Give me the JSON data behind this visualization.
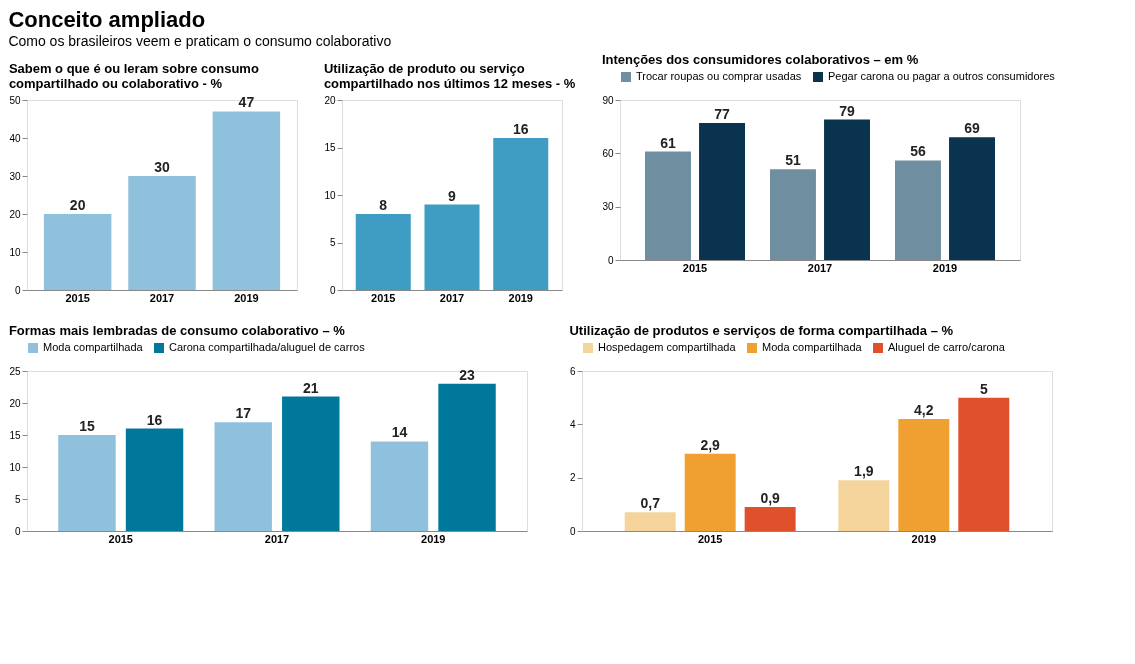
{
  "chart_data": [
    {
      "type": "bar",
      "title": "Sabem o que é ou leram sobre consumo compartilhado ou colaborativo - %",
      "annotations": [
        "Conceito ampliado",
        "Como os brasileiros veem e praticam o consumo colaborativo"
      ],
      "categories": [
        "2015",
        "2017",
        "2019"
      ],
      "values": [
        20,
        30,
        47
      ],
      "color": "#8fc1dc",
      "ylim": [
        0,
        50
      ],
      "yticks": [
        0,
        10,
        20,
        30,
        40,
        50
      ],
      "data_labels": true,
      "grid": false,
      "legend": false
    },
    {
      "type": "bar",
      "title": "Utilização de produto ou serviço compartilhado nos últimos 12 meses - %",
      "categories": [
        "2015",
        "2017",
        "2019"
      ],
      "values": [
        8,
        9,
        16
      ],
      "color": "#3f9cc2",
      "ylim": [
        0,
        20
      ],
      "yticks": [
        0,
        5,
        10,
        15,
        20
      ],
      "data_labels": true,
      "grid": false,
      "legend": false
    },
    {
      "type": "bar",
      "title": "Intenções dos consumidores colaborativos – em %",
      "categories": [
        "2015",
        "2017",
        "2019"
      ],
      "series": [
        {
          "name": "Trocar roupas ou comprar usadas",
          "color": "#6f8fa0",
          "values": [
            61,
            51,
            56
          ]
        },
        {
          "name": "Pegar carona ou pagar a outros consumidores",
          "color": "#0a3350",
          "values": [
            77,
            79,
            69
          ]
        }
      ],
      "ylim": [
        0,
        90
      ],
      "yticks": [
        0,
        30,
        60,
        90
      ],
      "data_labels": true,
      "grid": false,
      "legend": "top"
    },
    {
      "type": "bar",
      "title": "Formas mais lembradas de consumo colaborativo – %",
      "categories": [
        "2015",
        "2017",
        "2019"
      ],
      "series": [
        {
          "name": "Moda compartilhada",
          "color": "#8fc1dc",
          "values": [
            15,
            17,
            14
          ]
        },
        {
          "name": "Carona compartilhada/aluguel de carros",
          "color": "#00789c",
          "values": [
            16,
            21,
            23
          ]
        }
      ],
      "ylim": [
        0,
        25
      ],
      "yticks": [
        0,
        5,
        10,
        15,
        20,
        25
      ],
      "data_labels": true,
      "grid": false,
      "legend": "top"
    },
    {
      "type": "bar",
      "title": "Utilização de produtos e serviços de forma compartilhada – %",
      "categories": [
        "2015",
        "2019"
      ],
      "series": [
        {
          "name": "Hospedagem compartilhada",
          "color": "#f5d49c",
          "values": [
            0.7,
            1.9
          ],
          "value_labels": [
            "0,7",
            "1,9"
          ]
        },
        {
          "name": "Moda compartilhada",
          "color": "#f0a030",
          "values": [
            2.9,
            4.2
          ],
          "value_labels": [
            "2,9",
            "4,2"
          ]
        },
        {
          "name": "Aluguel de carro/carona",
          "color": "#e0502a",
          "values": [
            0.9,
            5
          ],
          "value_labels": [
            "0,9",
            "5"
          ]
        }
      ],
      "ylim": [
        0,
        6
      ],
      "yticks": [
        0,
        2,
        4,
        6
      ],
      "grid": false,
      "legend": "top"
    }
  ]
}
